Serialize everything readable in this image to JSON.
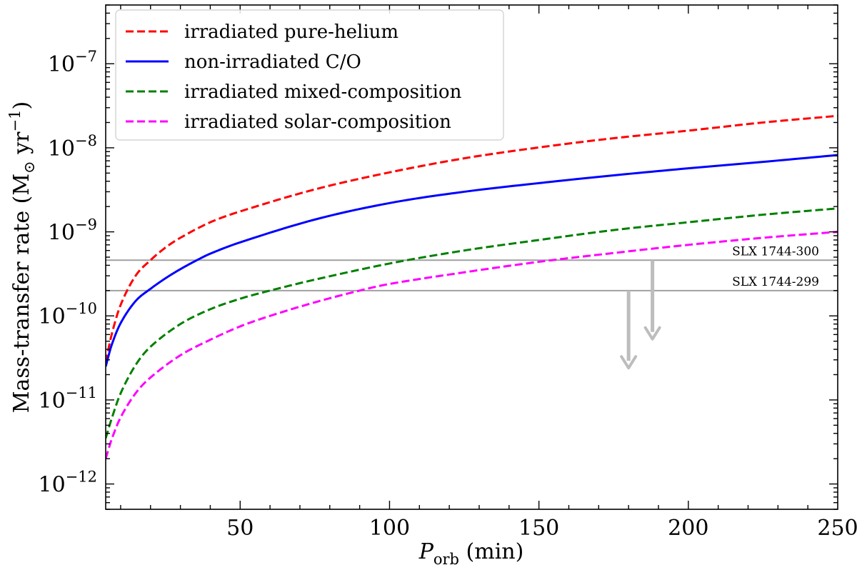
{
  "chart_data": {
    "type": "line",
    "title": "",
    "xlabel": {
      "main": "P",
      "sub": "orb",
      "rest": " (min)"
    },
    "ylabel": {
      "pre": "Mass-transfer rate (M",
      "sub": "⊙",
      "mid": " yr",
      "sup": "−1",
      "post": ")"
    },
    "xscale": "linear",
    "yscale": "log",
    "xlim": [
      5,
      250
    ],
    "ylim": [
      5e-13,
      5e-07
    ],
    "x_ticks": [
      50,
      100,
      150,
      200,
      250
    ],
    "x_tick_labels": [
      "50",
      "100",
      "150",
      "200",
      "250"
    ],
    "y_tick_exponents": [
      -12,
      -11,
      -10,
      -9,
      -8,
      -7
    ],
    "y_tick_base": "10",
    "y_tick_labels": [
      "−12",
      "−11",
      "−10",
      "−9",
      "−8",
      "−7"
    ],
    "legend_position": "top-left",
    "series": [
      {
        "name": "irradiated pure-helium",
        "color": "#ff0000",
        "style": "dashed",
        "x": [
          5,
          7,
          10,
          15,
          20,
          25,
          30,
          40,
          50,
          75,
          100,
          125,
          150,
          175,
          200,
          225,
          250
        ],
        "y": [
          2.8e-11,
          6e-11,
          1.35e-10,
          3e-10,
          4.6e-10,
          6.5e-10,
          8.5e-10,
          1.3e-09,
          1.75e-09,
          3.2e-09,
          5.1e-09,
          7.5e-09,
          1.01e-08,
          1.3e-08,
          1.6e-08,
          2e-08,
          2.4e-08
        ]
      },
      {
        "name": "non-irradiated C/O",
        "color": "#0000ff",
        "style": "solid",
        "x": [
          5,
          7,
          10,
          15,
          20,
          25,
          30,
          35,
          40,
          50,
          75,
          100,
          125,
          150,
          175,
          200,
          225,
          250
        ],
        "y": [
          2.5e-11,
          4.5e-11,
          8.2e-11,
          1.5e-10,
          2.1e-10,
          2.8e-10,
          3.6e-10,
          4.5e-10,
          5.5e-10,
          7.5e-10,
          1.4e-09,
          2.2e-09,
          3e-09,
          3.8e-09,
          4.7e-09,
          5.7e-09,
          6.8e-09,
          8.2e-09
        ]
      },
      {
        "name": "irradiated mixed-composition",
        "color": "#008000",
        "style": "dashed",
        "x": [
          5,
          7,
          10,
          15,
          20,
          30,
          40,
          50,
          60,
          75,
          100,
          125,
          150,
          175,
          200,
          225,
          250
        ],
        "y": [
          3.5e-12,
          6e-12,
          1.2e-11,
          2.6e-11,
          4.3e-11,
          8e-11,
          1.2e-10,
          1.6e-10,
          2e-10,
          2.7e-10,
          4.2e-10,
          6e-10,
          8e-10,
          1.05e-09,
          1.3e-09,
          1.6e-09,
          1.9e-09
        ]
      },
      {
        "name": "irradiated solar-composition",
        "color": "#ff00ff",
        "style": "dashed",
        "x": [
          5,
          7,
          10,
          15,
          20,
          30,
          40,
          50,
          60,
          75,
          90,
          100,
          125,
          150,
          175,
          200,
          225,
          250
        ],
        "y": [
          2e-12,
          3.4e-12,
          6.2e-12,
          1.2e-11,
          1.85e-11,
          3.4e-11,
          5.2e-11,
          7.5e-11,
          1e-10,
          1.45e-10,
          2e-10,
          2.4e-10,
          3.3e-10,
          4.4e-10,
          5.6e-10,
          7e-10,
          8.5e-10,
          1e-09
        ]
      }
    ],
    "horizontal_lines": [
      {
        "label": "SLX 1744-300",
        "y": 4.6e-10,
        "color": "#a0a0a0",
        "arrow_x": 188,
        "arrow_to_y": 5.3e-11
      },
      {
        "label": "SLX 1744-299",
        "y": 2e-10,
        "color": "#a0a0a0",
        "arrow_x": 180,
        "arrow_to_y": 2.4e-11
      }
    ],
    "grid": false
  }
}
